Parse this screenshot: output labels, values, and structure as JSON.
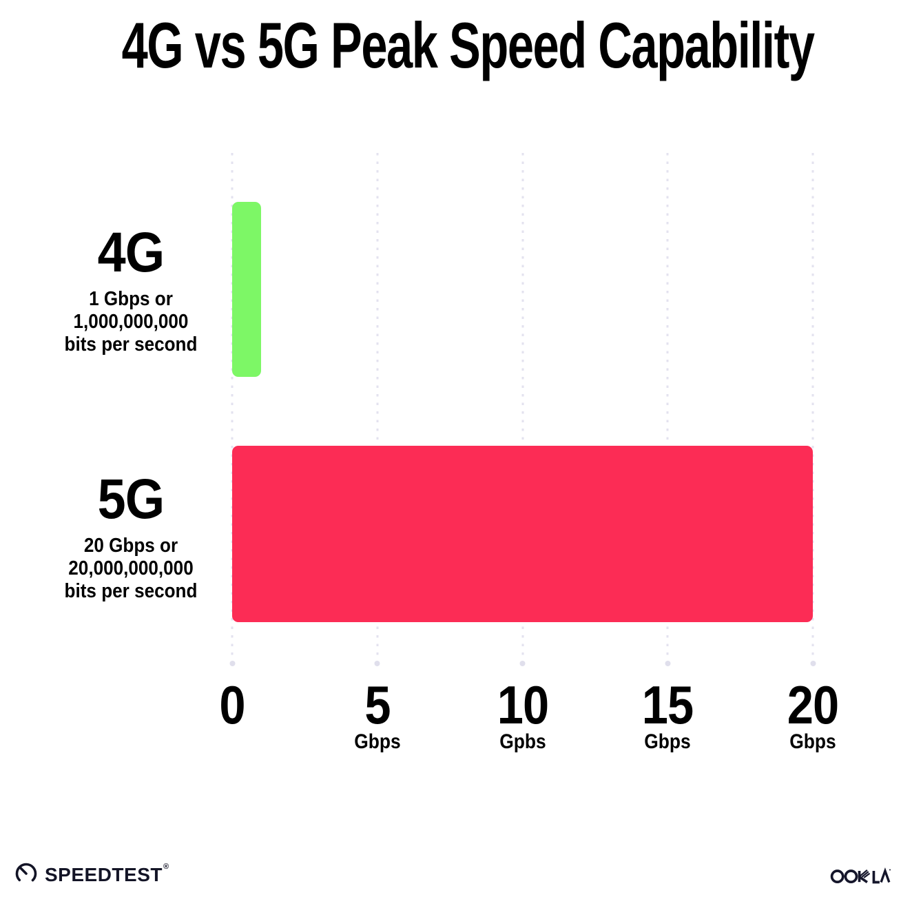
{
  "chart_data": {
    "type": "bar",
    "orientation": "horizontal",
    "title": "4G vs 5G Peak Speed Capability",
    "categories": [
      "4G",
      "5G"
    ],
    "values": [
      1,
      20
    ],
    "bar_colors": [
      "#7DF766",
      "#FC2C55"
    ],
    "category_sublabels": [
      [
        "1 Gbps or",
        "1,000,000,000",
        "bits per second"
      ],
      [
        "20 Gbps or",
        "20,000,000,000",
        "bits per second"
      ]
    ],
    "xlim": [
      0,
      20
    ],
    "x_ticks": [
      {
        "value": "0",
        "unit": ""
      },
      {
        "value": "5",
        "unit": "Gbps"
      },
      {
        "value": "10",
        "unit": "Gpbs"
      },
      {
        "value": "15",
        "unit": "Gbps"
      },
      {
        "value": "20",
        "unit": "Gbps"
      }
    ],
    "grid": "vertical-dotted",
    "legend_position": "none"
  },
  "footer": {
    "speedtest_label": "SPEEDTEST",
    "speedtest_mark": "®",
    "ookla_label": "OOKLA"
  },
  "colors": {
    "bar_4g": "#7DF766",
    "bar_5g": "#FC2C55",
    "gridline": "#E3E2EF",
    "background": "#FFFFFF",
    "text": "#000000",
    "footer_text": "#131426"
  }
}
